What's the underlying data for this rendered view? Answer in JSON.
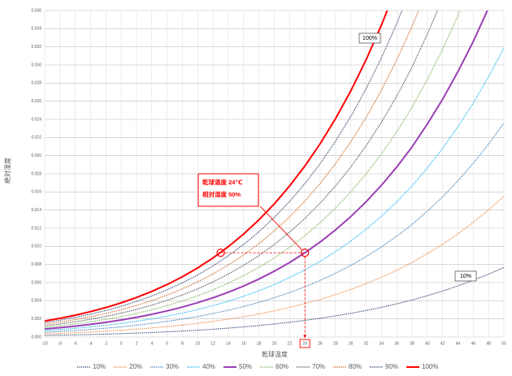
{
  "chart_data": {
    "type": "line",
    "x_label": "乾球温度",
    "y_label": "絶対湿度",
    "x": [
      -10,
      -8,
      -6,
      -4,
      -2,
      0,
      2,
      4,
      6,
      8,
      10,
      12,
      14,
      16,
      18,
      20,
      22,
      24,
      26,
      28,
      30,
      32,
      34,
      36,
      38,
      40,
      42,
      44,
      46,
      48,
      50
    ],
    "xlim": [
      -10,
      50
    ],
    "xticks": [
      -10,
      -8,
      -6,
      -4,
      -2,
      0,
      2,
      4,
      6,
      8,
      10,
      12,
      14,
      16,
      18,
      20,
      22,
      24,
      26,
      28,
      30,
      32,
      34,
      36,
      38,
      40,
      42,
      44,
      46,
      48,
      50
    ],
    "ylim": [
      0,
      0.036
    ],
    "yticks": [
      {
        "value": 0,
        "label": "0.000"
      },
      {
        "value": 0.002,
        "label": "0.002"
      },
      {
        "value": 0.004,
        "label": "0.004"
      },
      {
        "value": 0.006,
        "label": "0.006"
      },
      {
        "value": 0.008,
        "label": "0.008"
      },
      {
        "value": 0.01,
        "label": "0.010"
      },
      {
        "value": 0.012,
        "label": "0.012"
      },
      {
        "value": 0.014,
        "label": "0.014"
      },
      {
        "value": 0.016,
        "label": "0.016"
      },
      {
        "value": 0.018,
        "label": "0.018"
      },
      {
        "value": 0.02,
        "label": "0.020"
      },
      {
        "value": 0.022,
        "label": "0.022"
      },
      {
        "value": 0.024,
        "label": "0.024"
      },
      {
        "value": 0.026,
        "label": "0.026"
      },
      {
        "value": 0.028,
        "label": "0.028"
      },
      {
        "value": 0.03,
        "label": "0.030"
      },
      {
        "value": 0.032,
        "label": "0.032"
      },
      {
        "value": 0.034,
        "label": "0.034"
      },
      {
        "value": 0.036,
        "label": "0.036"
      }
    ],
    "grid": true,
    "legend": "bottom",
    "series": [
      {
        "name": "10%",
        "color": "#1f3864",
        "style": "dotted",
        "values": [
          0.000176,
          0.000206,
          0.00024,
          0.000279,
          0.000324,
          0.000375,
          0.000433,
          0.000499,
          0.000574,
          0.000659,
          0.000754,
          0.000861,
          0.000983,
          0.001118,
          0.001269,
          0.001438,
          0.001626,
          0.001836,
          0.002069,
          0.002327,
          0.002612,
          0.002928,
          0.003276,
          0.00366,
          0.004084,
          0.004561,
          0.005074,
          0.005642,
          0.006256,
          0.006933,
          0.007668
        ]
      },
      {
        "name": "20%",
        "color": "#ed7d31",
        "style": "dotted",
        "values": [
          0.000352,
          0.000411,
          0.00048,
          0.000558,
          0.000649,
          0.000751,
          0.000868,
          0.001,
          0.00115,
          0.001319,
          0.00151,
          0.001726,
          0.001968,
          0.002239,
          0.002543,
          0.002882,
          0.003261,
          0.003682,
          0.004151,
          0.004671,
          0.005246,
          0.005883,
          0.006587,
          0.007364,
          0.00822,
          0.009188,
          0.010231,
          0.011386,
          0.01264,
          0.014023,
          0.015528
        ]
      },
      {
        "name": "30%",
        "color": "#2e75b6",
        "style": "dotted",
        "values": [
          0.000528,
          0.000618,
          0.000721,
          0.000838,
          0.000973,
          0.001127,
          0.001302,
          0.001501,
          0.001726,
          0.00198,
          0.002268,
          0.002592,
          0.002956,
          0.003365,
          0.003822,
          0.004334,
          0.004904,
          0.00554,
          0.006247,
          0.007032,
          0.007902,
          0.008867,
          0.009933,
          0.011112,
          0.012412,
          0.013885,
          0.015473,
          0.017237,
          0.019154,
          0.021275,
          0.023587
        ]
      },
      {
        "name": "40%",
        "color": "#00b0f0",
        "style": "dotted",
        "values": [
          0.000704,
          0.000823,
          0.000961,
          0.001118,
          0.001298,
          0.001504,
          0.001737,
          0.002002,
          0.002303,
          0.002643,
          0.003029,
          0.003461,
          0.003948,
          0.004494,
          0.005108,
          0.005792,
          0.006556,
          0.007409,
          0.008357,
          0.009411,
          0.010581,
          0.011879,
          0.013315,
          0.014905,
          0.016661,
          0.018652,
          0.020803,
          0.023196,
          0.025803,
          0.028693,
          0.031852
        ]
      },
      {
        "name": "50%",
        "color": "#9b3fb5",
        "style": "solid",
        "values": [
          0.000881,
          0.00103,
          0.001201,
          0.001398,
          0.001623,
          0.001881,
          0.002174,
          0.002505,
          0.002882,
          0.003307,
          0.00379,
          0.004332,
          0.004943,
          0.005628,
          0.006397,
          0.007258,
          0.008217,
          0.009289,
          0.010482,
          0.011809,
          0.013283,
          0.014919,
          0.016733,
          0.018743,
          0.020966,
          0.023491,
          0.026223,
          0.029268,
          0.032592,
          0.036285,
          0.040331
        ]
      },
      {
        "name": "60%",
        "color": "#70ad47",
        "style": "dotted",
        "values": [
          0.001058,
          0.001236,
          0.001442,
          0.001679,
          0.001949,
          0.002258,
          0.00261,
          0.003009,
          0.003461,
          0.003973,
          0.004553,
          0.005206,
          0.005941,
          0.006767,
          0.007692,
          0.008729,
          0.009887,
          0.011179,
          0.012621,
          0.014225,
          0.016008,
          0.017989,
          0.020189,
          0.022628,
          0.02533,
          0.028404,
          0.031735,
          0.035455,
          0.039524,
          null,
          null
        ]
      },
      {
        "name": "70%",
        "color": "#404040",
        "style": "dotted",
        "values": [
          0.001234,
          0.001442,
          0.001684,
          0.001959,
          0.002275,
          0.002636,
          0.003047,
          0.003513,
          0.004042,
          0.004641,
          0.005318,
          0.006082,
          0.006943,
          0.007908,
          0.008993,
          0.010208,
          0.011566,
          0.013082,
          0.014775,
          0.016659,
          0.018756,
          0.021089,
          0.023682,
          0.026561,
          0.029753,
          0.033392,
          0.037343,
          null,
          null,
          null,
          null
        ]
      },
      {
        "name": "80%",
        "color": "#c55a11",
        "style": "dotted",
        "values": [
          0.00141,
          0.001649,
          0.001924,
          0.00224,
          0.002602,
          0.003014,
          0.003484,
          0.004018,
          0.004623,
          0.00531,
          0.006086,
          0.006961,
          0.007946,
          0.009055,
          0.010299,
          0.011693,
          0.013252,
          0.014996,
          0.016942,
          0.019112,
          0.021528,
          0.024219,
          0.027213,
          0.030542,
          0.034238,
          0.038457,
          null,
          null,
          null,
          null,
          null
        ]
      },
      {
        "name": "90%",
        "color": "#203864",
        "style": "dotted",
        "values": [
          0.001587,
          0.001856,
          0.002166,
          0.002521,
          0.002928,
          0.003393,
          0.003923,
          0.004524,
          0.005206,
          0.00598,
          0.006855,
          0.007842,
          0.008954,
          0.010205,
          0.011611,
          0.013186,
          0.014949,
          0.016921,
          0.019126,
          0.021584,
          0.024323,
          0.027379,
          0.030783,
          0.034572,
          0.038784,
          null,
          null,
          null,
          null,
          null,
          null
        ]
      },
      {
        "name": "100%",
        "color": "#ff0000",
        "style": "solid",
        "values": [
          0.001764,
          0.002063,
          0.002407,
          0.002803,
          0.003255,
          0.003772,
          0.004361,
          0.00503,
          0.00579,
          0.006651,
          0.007626,
          0.008726,
          0.009965,
          0.01136,
          0.012927,
          0.014685,
          0.016655,
          0.018859,
          0.021323,
          0.024075,
          0.027145,
          0.030571,
          0.034392,
          0.038652,
          null,
          null,
          null,
          null,
          null,
          null,
          null
        ]
      }
    ],
    "line_labels": [
      "100%",
      "10%"
    ],
    "annotation": {
      "lines": [
        "乾球温度 24℃",
        "相対湿度 50%"
      ],
      "color": "#ff0000",
      "points": [
        {
          "x": 24,
          "y": 0.009289
        },
        {
          "x": 13,
          "y": 0.009289
        }
      ]
    }
  }
}
